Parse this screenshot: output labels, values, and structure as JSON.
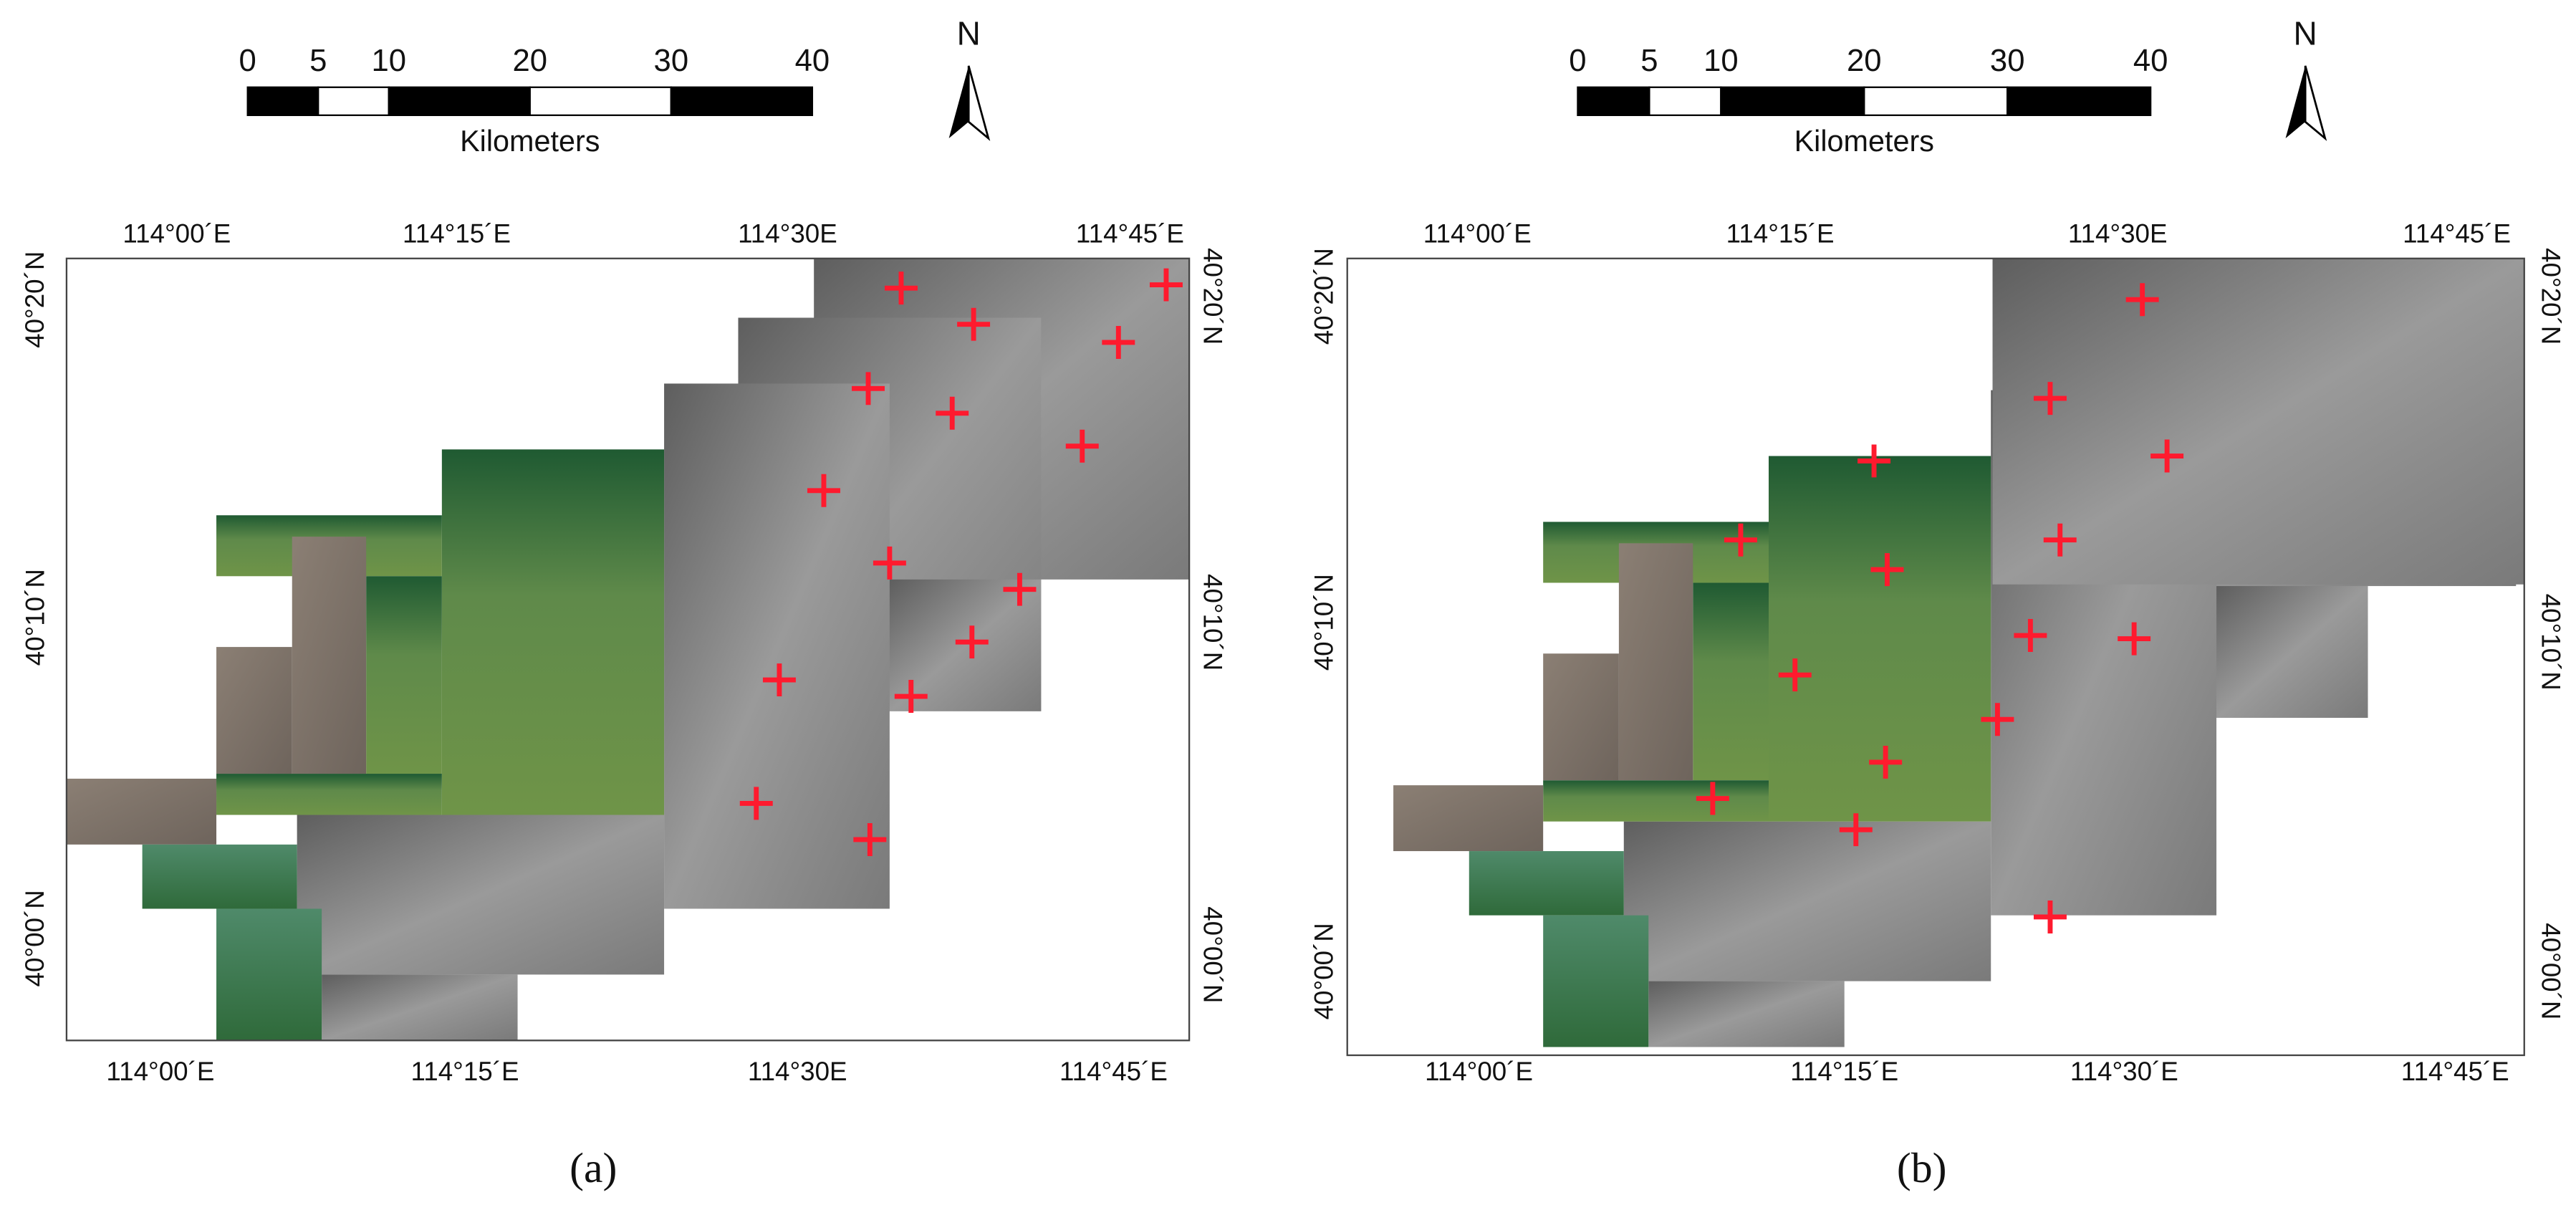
{
  "panels": [
    {
      "caption": "(a)",
      "scale_bar": {
        "ticks": [
          0,
          5,
          10,
          20,
          30,
          40
        ],
        "unit": "Kilometers"
      },
      "north": "N",
      "top_labels": [
        "114°00´E",
        "114°15´E",
        "114°30E",
        "114°45´E"
      ],
      "bottom_labels": [
        "114°00´E",
        "114°15´E",
        "114°30E",
        "114°45´E"
      ],
      "left_labels": [
        "40°20´N",
        "40°10´N",
        "40°00´N"
      ],
      "right_labels": [
        "40°20´N",
        "40°10´N",
        "40°00´N"
      ]
    },
    {
      "caption": "(b)",
      "scale_bar": {
        "ticks": [
          0,
          5,
          10,
          20,
          30,
          40
        ],
        "unit": "Kilometers"
      },
      "north": "N",
      "top_labels": [
        "114°00´E",
        "114°15´E",
        "114°30E",
        "114°45´E"
      ],
      "bottom_labels": [
        "114°00´E",
        "114°15´E",
        "114°30´E",
        "114°45´E"
      ],
      "left_labels": [
        "40°20´N",
        "40°10´N",
        "40°00´N"
      ],
      "right_labels": [
        "40°20´N",
        "40°10´N",
        "40°00´N"
      ]
    }
  ]
}
